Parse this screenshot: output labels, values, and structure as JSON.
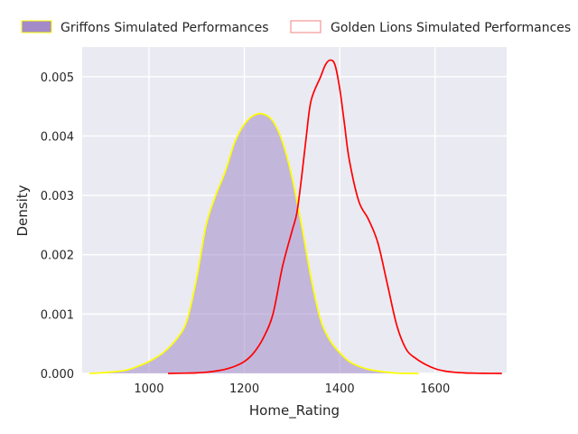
{
  "chart_data": {
    "type": "area",
    "title": "",
    "xlabel": "Home_Rating",
    "ylabel": "Density",
    "xlim": [
      860,
      1750
    ],
    "ylim": [
      0,
      0.0055
    ],
    "x_ticks": [
      1000,
      1200,
      1400,
      1600
    ],
    "x_tick_labels": [
      "1000",
      "1200",
      "1400",
      "1600"
    ],
    "y_ticks": [
      0,
      0.001,
      0.002,
      0.003,
      0.004,
      0.005
    ],
    "y_tick_labels": [
      "0.000",
      "0.001",
      "0.002",
      "0.003",
      "0.004",
      "0.005"
    ],
    "grid": true,
    "legend_position": "top",
    "series": [
      {
        "name": "Griffons Simulated Performances",
        "style": "filled",
        "fill_color": "#a38ac8",
        "line_color": "#ffff00",
        "x": [
          875,
          900,
          950,
          980,
          1000,
          1030,
          1060,
          1080,
          1100,
          1120,
          1140,
          1160,
          1180,
          1200,
          1220,
          1240,
          1260,
          1280,
          1300,
          1320,
          1340,
          1360,
          1380,
          1400,
          1420,
          1440,
          1460,
          1480,
          1500,
          1520,
          1540,
          1565
        ],
        "y": [
          0,
          1e-05,
          5e-05,
          0.00013,
          0.0002,
          0.00035,
          0.0006,
          0.0009,
          0.0016,
          0.0025,
          0.003,
          0.0034,
          0.0039,
          0.0042,
          0.00435,
          0.00437,
          0.00425,
          0.0039,
          0.0033,
          0.0025,
          0.0016,
          0.0009,
          0.00055,
          0.00035,
          0.0002,
          0.00012,
          7e-05,
          4e-05,
          2e-05,
          5e-06,
          1e-06,
          0
        ]
      },
      {
        "name": "Golden Lions Simulated Performances",
        "style": "line",
        "line_color": "#ff0000",
        "legend_edge_color": "#f08080",
        "x": [
          1040,
          1080,
          1100,
          1120,
          1140,
          1160,
          1180,
          1200,
          1220,
          1240,
          1260,
          1280,
          1300,
          1310,
          1320,
          1330,
          1340,
          1360,
          1370,
          1380,
          1390,
          1400,
          1410,
          1420,
          1440,
          1460,
          1480,
          1500,
          1520,
          1540,
          1560,
          1580,
          1600,
          1620,
          1640,
          1660,
          1680,
          1700,
          1740
        ],
        "y": [
          0,
          5e-06,
          1e-05,
          2e-05,
          4e-05,
          7e-05,
          0.00012,
          0.0002,
          0.00035,
          0.0006,
          0.001,
          0.0018,
          0.0024,
          0.0027,
          0.0033,
          0.004,
          0.0046,
          0.005,
          0.0052,
          0.00528,
          0.0052,
          0.0048,
          0.0042,
          0.0036,
          0.0029,
          0.0026,
          0.0022,
          0.0015,
          0.0008,
          0.0004,
          0.00025,
          0.00015,
          8e-05,
          4e-05,
          2e-05,
          1e-05,
          5e-06,
          2e-06,
          0
        ]
      }
    ]
  }
}
